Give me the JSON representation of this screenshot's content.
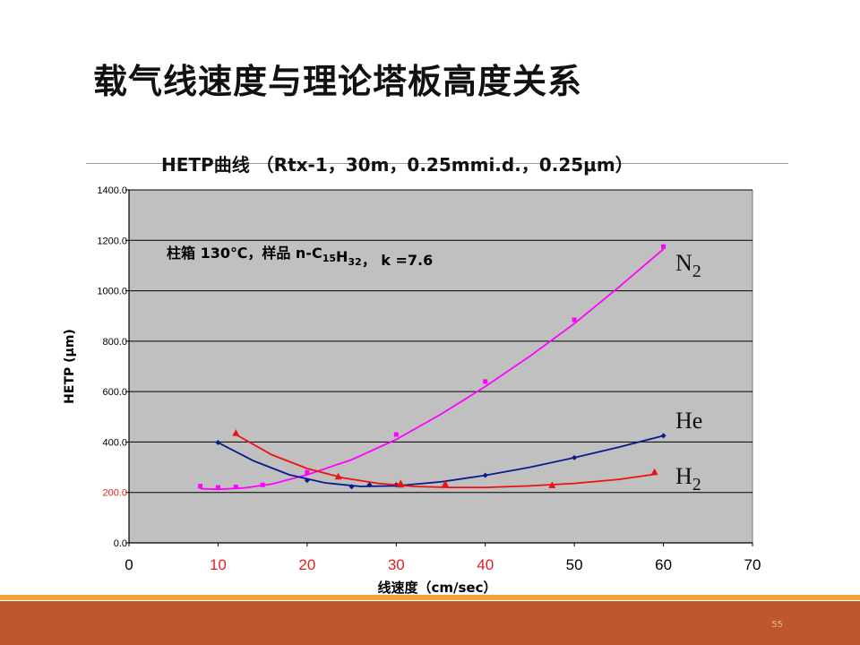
{
  "slide": {
    "title": "载气线速度与理论塔板高度关系",
    "page_number": "55"
  },
  "chart_data": {
    "type": "line",
    "title": "HETP曲线 （Rtx-1，30m，0.25mmi.d.，0.25μm）",
    "annotation": {
      "prefix": "柱箱  130℃，样品  n-C",
      "sub1": "15",
      "mid": "H",
      "sub2": "32",
      "suffix": "，  k =7.6"
    },
    "xlabel": "线速度（cm/sec）",
    "ylabel": "HETP (μm)",
    "xlim": [
      0,
      70
    ],
    "ylim": [
      0,
      1400
    ],
    "x_ticks": [
      "0",
      "10",
      "20",
      "30",
      "40",
      "50",
      "60",
      "70"
    ],
    "y_ticks": [
      "0.0",
      "200.0",
      "400.0",
      "600.0",
      "800.0",
      "1000.0",
      "1200.0",
      "1400.0"
    ],
    "grid": true,
    "series": [
      {
        "name": "N2",
        "label_base": "N",
        "label_sub": "2",
        "color": "#ff00ff",
        "marker": "square",
        "points": [
          [
            8,
            225
          ],
          [
            10,
            220
          ],
          [
            12,
            222
          ],
          [
            15,
            230
          ],
          [
            20,
            280
          ],
          [
            30,
            430
          ],
          [
            40,
            640
          ],
          [
            50,
            885
          ],
          [
            60,
            1175
          ]
        ],
        "curve": [
          [
            8,
            215
          ],
          [
            10,
            212
          ],
          [
            13,
            218
          ],
          [
            16,
            233
          ],
          [
            20,
            270
          ],
          [
            25,
            330
          ],
          [
            30,
            410
          ],
          [
            35,
            510
          ],
          [
            40,
            620
          ],
          [
            45,
            740
          ],
          [
            50,
            870
          ],
          [
            55,
            1015
          ],
          [
            60,
            1165
          ]
        ]
      },
      {
        "name": "He",
        "label_base": "He",
        "label_sub": "",
        "color": "#0a1a8c",
        "marker": "diamond",
        "points": [
          [
            10,
            398
          ],
          [
            20,
            248
          ],
          [
            25,
            223
          ],
          [
            27,
            230
          ],
          [
            30,
            230
          ],
          [
            40,
            268
          ],
          [
            50,
            338
          ],
          [
            60,
            425
          ]
        ],
        "curve": [
          [
            10,
            398
          ],
          [
            14,
            325
          ],
          [
            18,
            270
          ],
          [
            22,
            238
          ],
          [
            26,
            224
          ],
          [
            30,
            226
          ],
          [
            35,
            242
          ],
          [
            40,
            268
          ],
          [
            45,
            300
          ],
          [
            50,
            338
          ],
          [
            55,
            380
          ],
          [
            60,
            425
          ]
        ]
      },
      {
        "name": "H2",
        "label_base": "H",
        "label_sub": "2",
        "color": "#ee1111",
        "marker": "triangle",
        "points": [
          [
            12,
            435
          ],
          [
            23.5,
            262
          ],
          [
            30.5,
            235
          ],
          [
            30.5,
            230
          ],
          [
            35.5,
            233
          ],
          [
            47.5,
            228
          ],
          [
            59,
            280
          ]
        ],
        "curve": [
          [
            12,
            430
          ],
          [
            16,
            350
          ],
          [
            20,
            295
          ],
          [
            24,
            258
          ],
          [
            28,
            236
          ],
          [
            32,
            224
          ],
          [
            36,
            220
          ],
          [
            40,
            220
          ],
          [
            45,
            226
          ],
          [
            50,
            236
          ],
          [
            55,
            252
          ],
          [
            59,
            272
          ]
        ]
      }
    ]
  }
}
